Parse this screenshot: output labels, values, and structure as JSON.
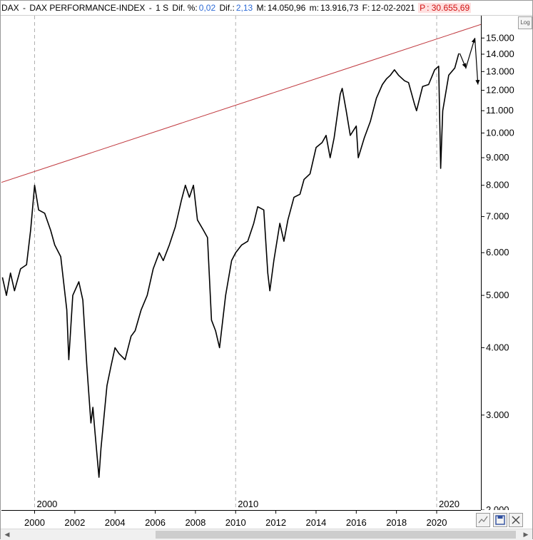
{
  "header": {
    "symbol": "DAX",
    "separator": " - ",
    "name": "DAX PERFORMANCE-INDEX",
    "dash": " - ",
    "interval": "1 S",
    "dif_pct_label": "Dif. %:",
    "dif_pct_value": "0,02",
    "dif_label": "Dif.:",
    "dif_value": "2,13",
    "m_label": "M:",
    "m_value": "14.050,96",
    "min_label": "m:",
    "min_value": "13.916,73",
    "date_label": "F:",
    "date_value": "12-02-2021",
    "p_label": "P",
    "p_value": ": 30.655,69"
  },
  "log_button_label": "Log",
  "chart_data": {
    "type": "line",
    "title": "",
    "xlabel": "",
    "ylabel": "",
    "y_scale": "log",
    "ylim": [
      2000,
      16500
    ],
    "xlim": [
      1998.35,
      2022.2
    ],
    "grid": "vertical dashed lines at decade marks",
    "y_ticks": [
      "2.000",
      "3.000",
      "4.000",
      "5.000",
      "6.000",
      "7.000",
      "8.000",
      "9.000",
      "10.000",
      "11.000",
      "12.000",
      "13.000",
      "14.000",
      "15.000"
    ],
    "x_ticks": [
      "2000",
      "2002",
      "2004",
      "2006",
      "2008",
      "2010",
      "2012",
      "2014",
      "2016",
      "2018",
      "2020"
    ],
    "decade_labels": [
      "2000",
      "2010",
      "2020"
    ],
    "series": [
      {
        "color": "#000000",
        "x": [
          1998.4,
          1998.6,
          1998.8,
          1999.0,
          1999.3,
          1999.6,
          1999.8,
          2000.0,
          2000.2,
          2000.5,
          2000.8,
          2001.0,
          2001.3,
          2001.6,
          2001.7,
          2001.9,
          2002.2,
          2002.4,
          2002.6,
          2002.8,
          2002.9,
          2003.0,
          2003.2,
          2003.3,
          2003.6,
          2003.8,
          2004.0,
          2004.2,
          2004.5,
          2004.8,
          2005.0,
          2005.3,
          2005.6,
          2005.9,
          2006.2,
          2006.4,
          2006.7,
          2007.0,
          2007.3,
          2007.5,
          2007.7,
          2007.9,
          2008.1,
          2008.4,
          2008.6,
          2008.8,
          2009.0,
          2009.2,
          2009.5,
          2009.8,
          2010.0,
          2010.3,
          2010.6,
          2010.9,
          2011.1,
          2011.4,
          2011.6,
          2011.7,
          2011.9,
          2012.2,
          2012.4,
          2012.6,
          2012.9,
          2013.2,
          2013.4,
          2013.7,
          2014.0,
          2014.3,
          2014.5,
          2014.7,
          2014.9,
          2015.2,
          2015.3,
          2015.5,
          2015.7,
          2016.0,
          2016.1,
          2016.4,
          2016.7,
          2017.0,
          2017.3,
          2017.5,
          2017.7,
          2017.9,
          2018.1,
          2018.4,
          2018.6,
          2018.9,
          2019.0,
          2019.3,
          2019.6,
          2019.9,
          2020.1,
          2020.2,
          2020.3,
          2020.6,
          2020.9,
          2021.1
        ],
        "y": [
          5400,
          5000,
          5500,
          5100,
          5600,
          5700,
          6600,
          8000,
          7200,
          7100,
          6600,
          6200,
          5900,
          4700,
          3800,
          5000,
          5300,
          4900,
          3700,
          2900,
          3100,
          2800,
          2300,
          2600,
          3400,
          3700,
          4000,
          3900,
          3800,
          4200,
          4300,
          4700,
          5000,
          5600,
          6000,
          5800,
          6200,
          6700,
          7500,
          8000,
          7600,
          8000,
          6900,
          6600,
          6400,
          4500,
          4300,
          4000,
          5000,
          5800,
          6000,
          6200,
          6300,
          6800,
          7300,
          7200,
          5500,
          5100,
          5800,
          6800,
          6300,
          6900,
          7600,
          7700,
          8200,
          8400,
          9400,
          9600,
          9900,
          9000,
          9800,
          11800,
          12100,
          11000,
          9900,
          10300,
          9000,
          9800,
          10500,
          11600,
          12300,
          12600,
          12800,
          13100,
          12800,
          12500,
          12400,
          11300,
          11000,
          12200,
          12300,
          13100,
          13300,
          8600,
          11000,
          12800,
          13200,
          14050
        ]
      }
    ],
    "trendline": {
      "color": "#c0393f",
      "x": [
        1998.35,
        2022.2
      ],
      "y": [
        8100,
        15900
      ]
    },
    "arrows": [
      {
        "color": "#000000",
        "x": [
          2021.15,
          2021.45,
          2021.9,
          2022.05
        ],
        "y": [
          14050,
          13200,
          15000,
          12300
        ]
      }
    ]
  }
}
